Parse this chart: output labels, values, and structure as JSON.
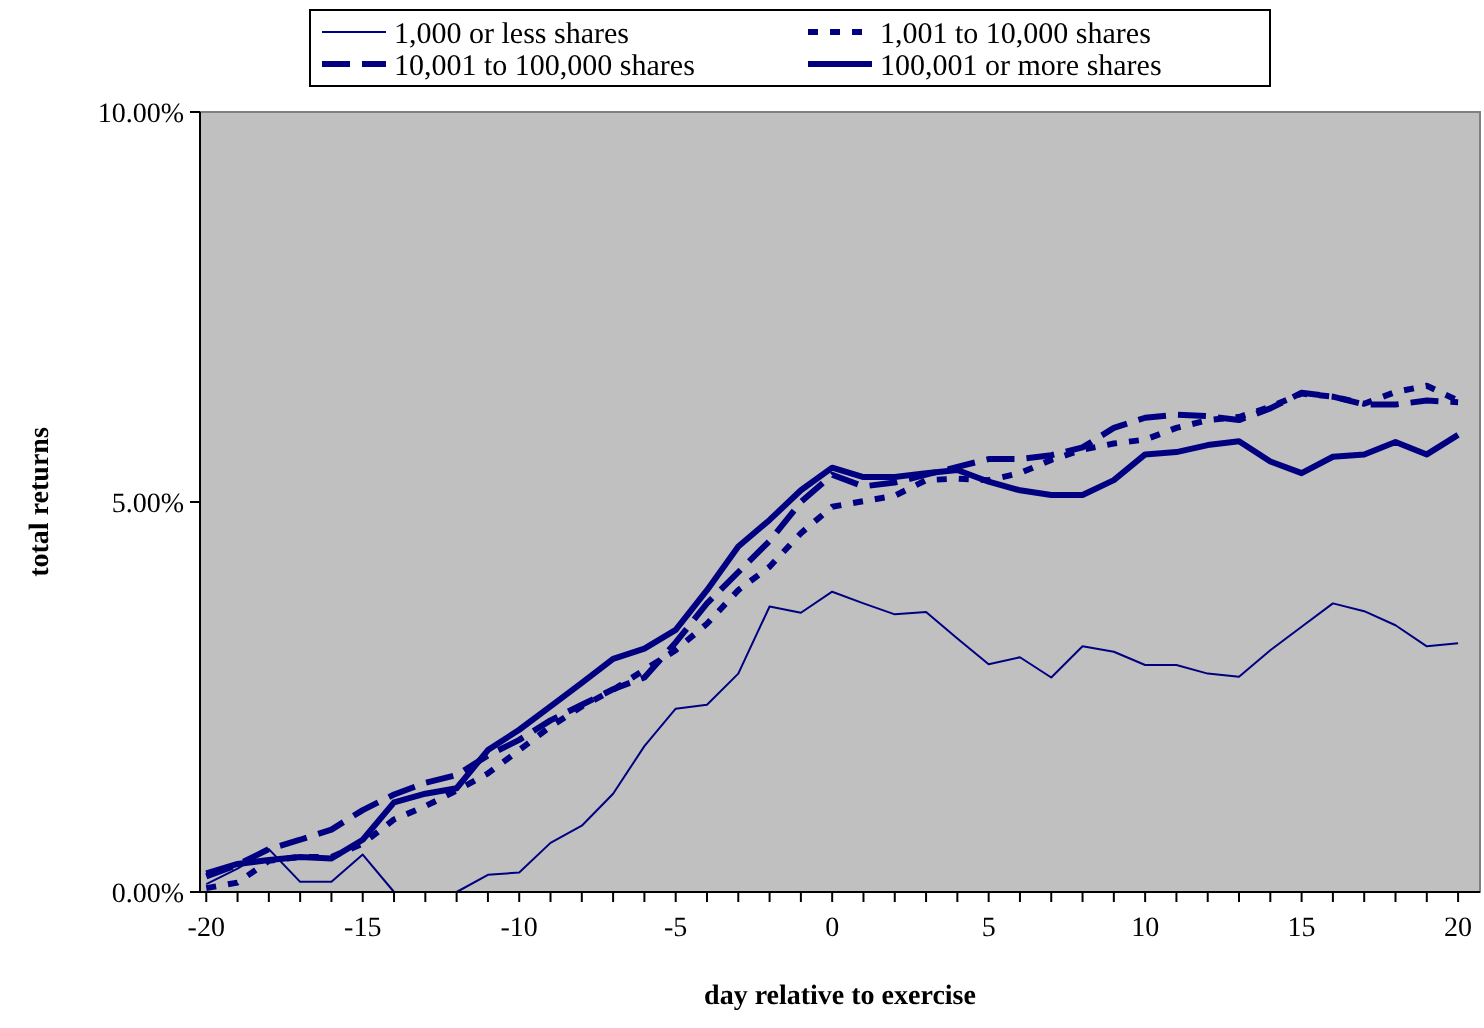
{
  "chart_data": {
    "type": "line",
    "xlabel": "day relative to exercise",
    "ylabel": "total returns",
    "xlim": [
      -20.2,
      20.7
    ],
    "xticks": [
      {
        "value": -20,
        "label": "-20"
      },
      {
        "value": -19,
        "label": null
      },
      {
        "value": -18,
        "label": null
      },
      {
        "value": -17,
        "label": null
      },
      {
        "value": -16,
        "label": null
      },
      {
        "value": -15,
        "label": "-15"
      },
      {
        "value": -14,
        "label": null
      },
      {
        "value": -13,
        "label": null
      },
      {
        "value": -12,
        "label": null
      },
      {
        "value": -11,
        "label": null
      },
      {
        "value": -10,
        "label": "-10"
      },
      {
        "value": -9,
        "label": null
      },
      {
        "value": -8,
        "label": null
      },
      {
        "value": -7,
        "label": null
      },
      {
        "value": -6,
        "label": null
      },
      {
        "value": -5,
        "label": "-5"
      },
      {
        "value": -4,
        "label": null
      },
      {
        "value": -3,
        "label": null
      },
      {
        "value": -2,
        "label": null
      },
      {
        "value": -1,
        "label": null
      },
      {
        "value": 0,
        "label": "0"
      },
      {
        "value": 1,
        "label": null
      },
      {
        "value": 2,
        "label": null
      },
      {
        "value": 3,
        "label": null
      },
      {
        "value": 4,
        "label": null
      },
      {
        "value": 5,
        "label": "5"
      },
      {
        "value": 6,
        "label": null
      },
      {
        "value": 7,
        "label": null
      },
      {
        "value": 8,
        "label": null
      },
      {
        "value": 9,
        "label": null
      },
      {
        "value": 10,
        "label": "10"
      },
      {
        "value": 11,
        "label": null
      },
      {
        "value": 12,
        "label": null
      },
      {
        "value": 13,
        "label": null
      },
      {
        "value": 14,
        "label": null
      },
      {
        "value": 15,
        "label": "15"
      },
      {
        "value": 16,
        "label": null
      },
      {
        "value": 17,
        "label": null
      },
      {
        "value": 18,
        "label": null
      },
      {
        "value": 19,
        "label": null
      },
      {
        "value": 20,
        "label": "20"
      }
    ],
    "ylim": [
      0,
      10
    ],
    "yticks": [
      {
        "value": 0,
        "label": "0.00%"
      },
      {
        "value": 5,
        "label": "5.00%"
      },
      {
        "value": 10,
        "label": "10.00%"
      }
    ],
    "x": [
      -20,
      -19,
      -18,
      -17,
      -16,
      -15,
      -14,
      -13,
      -12,
      -11,
      -10,
      -9,
      -8,
      -7,
      -6,
      -5,
      -4,
      -3,
      -2,
      -1,
      0,
      1,
      2,
      3,
      4,
      5,
      6,
      7,
      8,
      9,
      10,
      11,
      12,
      13,
      14,
      15,
      16,
      17,
      18,
      19,
      20
    ],
    "grid": false,
    "legend": "top",
    "marker": "none",
    "series": [
      {
        "name": "1,000 or less shares",
        "color": "#000080",
        "line_style": "solid",
        "values": [
          0.1,
          0.3,
          0.55,
          0.13,
          0.13,
          0.48,
          0,
          0,
          0,
          0.22,
          0.25,
          0.63,
          0.85,
          1.26,
          1.87,
          2.35,
          2.4,
          2.8,
          3.66,
          3.58,
          3.85,
          3.7,
          3.56,
          3.59,
          3.25,
          2.92,
          3.01,
          2.75,
          3.15,
          3.08,
          2.91,
          2.91,
          2.8,
          2.76,
          3.1,
          3.4,
          3.7,
          3.6,
          3.42,
          3.15,
          3.19
        ]
      },
      {
        "name": "1,001 to 10,000 shares",
        "color": "#000080",
        "line_style": "dotted",
        "values": [
          0.05,
          0.12,
          0.4,
          0.45,
          0.45,
          0.62,
          0.93,
          1.1,
          1.3,
          1.52,
          1.82,
          2.12,
          2.38,
          2.59,
          2.85,
          3.1,
          3.44,
          3.87,
          4.17,
          4.6,
          4.94,
          5.01,
          5.08,
          5.28,
          5.3,
          5.28,
          5.37,
          5.54,
          5.67,
          5.75,
          5.8,
          5.95,
          6.05,
          6.09,
          6.22,
          6.39,
          6.35,
          6.26,
          6.41,
          6.49,
          6.3
        ]
      },
      {
        "name": "10,001 to 100,000 shares",
        "color": "#000080",
        "line_style": "dashed",
        "values": [
          0.2,
          0.35,
          0.55,
          0.67,
          0.8,
          1.05,
          1.25,
          1.4,
          1.5,
          1.75,
          1.95,
          2.2,
          2.4,
          2.6,
          2.75,
          3.2,
          3.7,
          4.1,
          4.5,
          5.0,
          5.35,
          5.2,
          5.25,
          5.35,
          5.45,
          5.55,
          5.55,
          5.6,
          5.7,
          5.95,
          6.08,
          6.12,
          6.1,
          6.05,
          6.2,
          6.4,
          6.35,
          6.25,
          6.25,
          6.3,
          6.28
        ]
      },
      {
        "name": "100,001 or more shares",
        "color": "#000080",
        "line_style": "solid",
        "values": [
          0.24,
          0.36,
          0.41,
          0.45,
          0.43,
          0.67,
          1.15,
          1.26,
          1.33,
          1.82,
          2.08,
          2.38,
          2.68,
          2.99,
          3.12,
          3.36,
          3.87,
          4.43,
          4.77,
          5.15,
          5.44,
          5.32,
          5.32,
          5.37,
          5.41,
          5.26,
          5.15,
          5.09,
          5.09,
          5.28,
          5.61,
          5.64,
          5.73,
          5.78,
          5.52,
          5.37,
          5.58,
          5.61,
          5.77,
          5.61,
          5.86
        ]
      }
    ]
  }
}
